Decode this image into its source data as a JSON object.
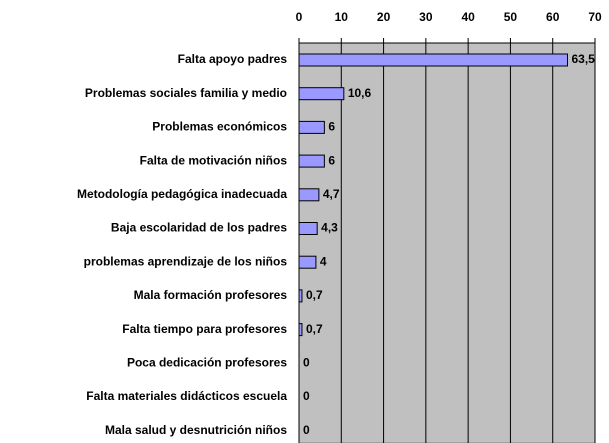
{
  "chart_data": {
    "type": "bar",
    "orientation": "horizontal",
    "categories": [
      "Falta apoyo padres",
      "Problemas sociales familia y medio",
      "Problemas económicos",
      "Falta de motivación niños",
      "Metodología pedagógica inadecuada",
      "Baja escolaridad de los padres",
      "problemas aprendizaje de los niños",
      "Mala formación profesores",
      "Falta tiempo para profesores",
      "Poca dedicación profesores",
      "Falta materiales didácticos escuela",
      "Mala salud y desnutrición niños"
    ],
    "values": [
      63.5,
      10.6,
      6,
      6,
      4.7,
      4.3,
      4,
      0.7,
      0.7,
      0,
      0,
      0
    ],
    "value_labels": [
      "63,5",
      "10,6",
      "6",
      "6",
      "4,7",
      "4,3",
      "4",
      "0,7",
      "0,7",
      "0",
      "0",
      "0"
    ],
    "color": "#9999ff",
    "xlim": [
      0,
      70
    ],
    "xticks": [
      0,
      10,
      20,
      30,
      40,
      50,
      60,
      70
    ],
    "grid": true
  }
}
